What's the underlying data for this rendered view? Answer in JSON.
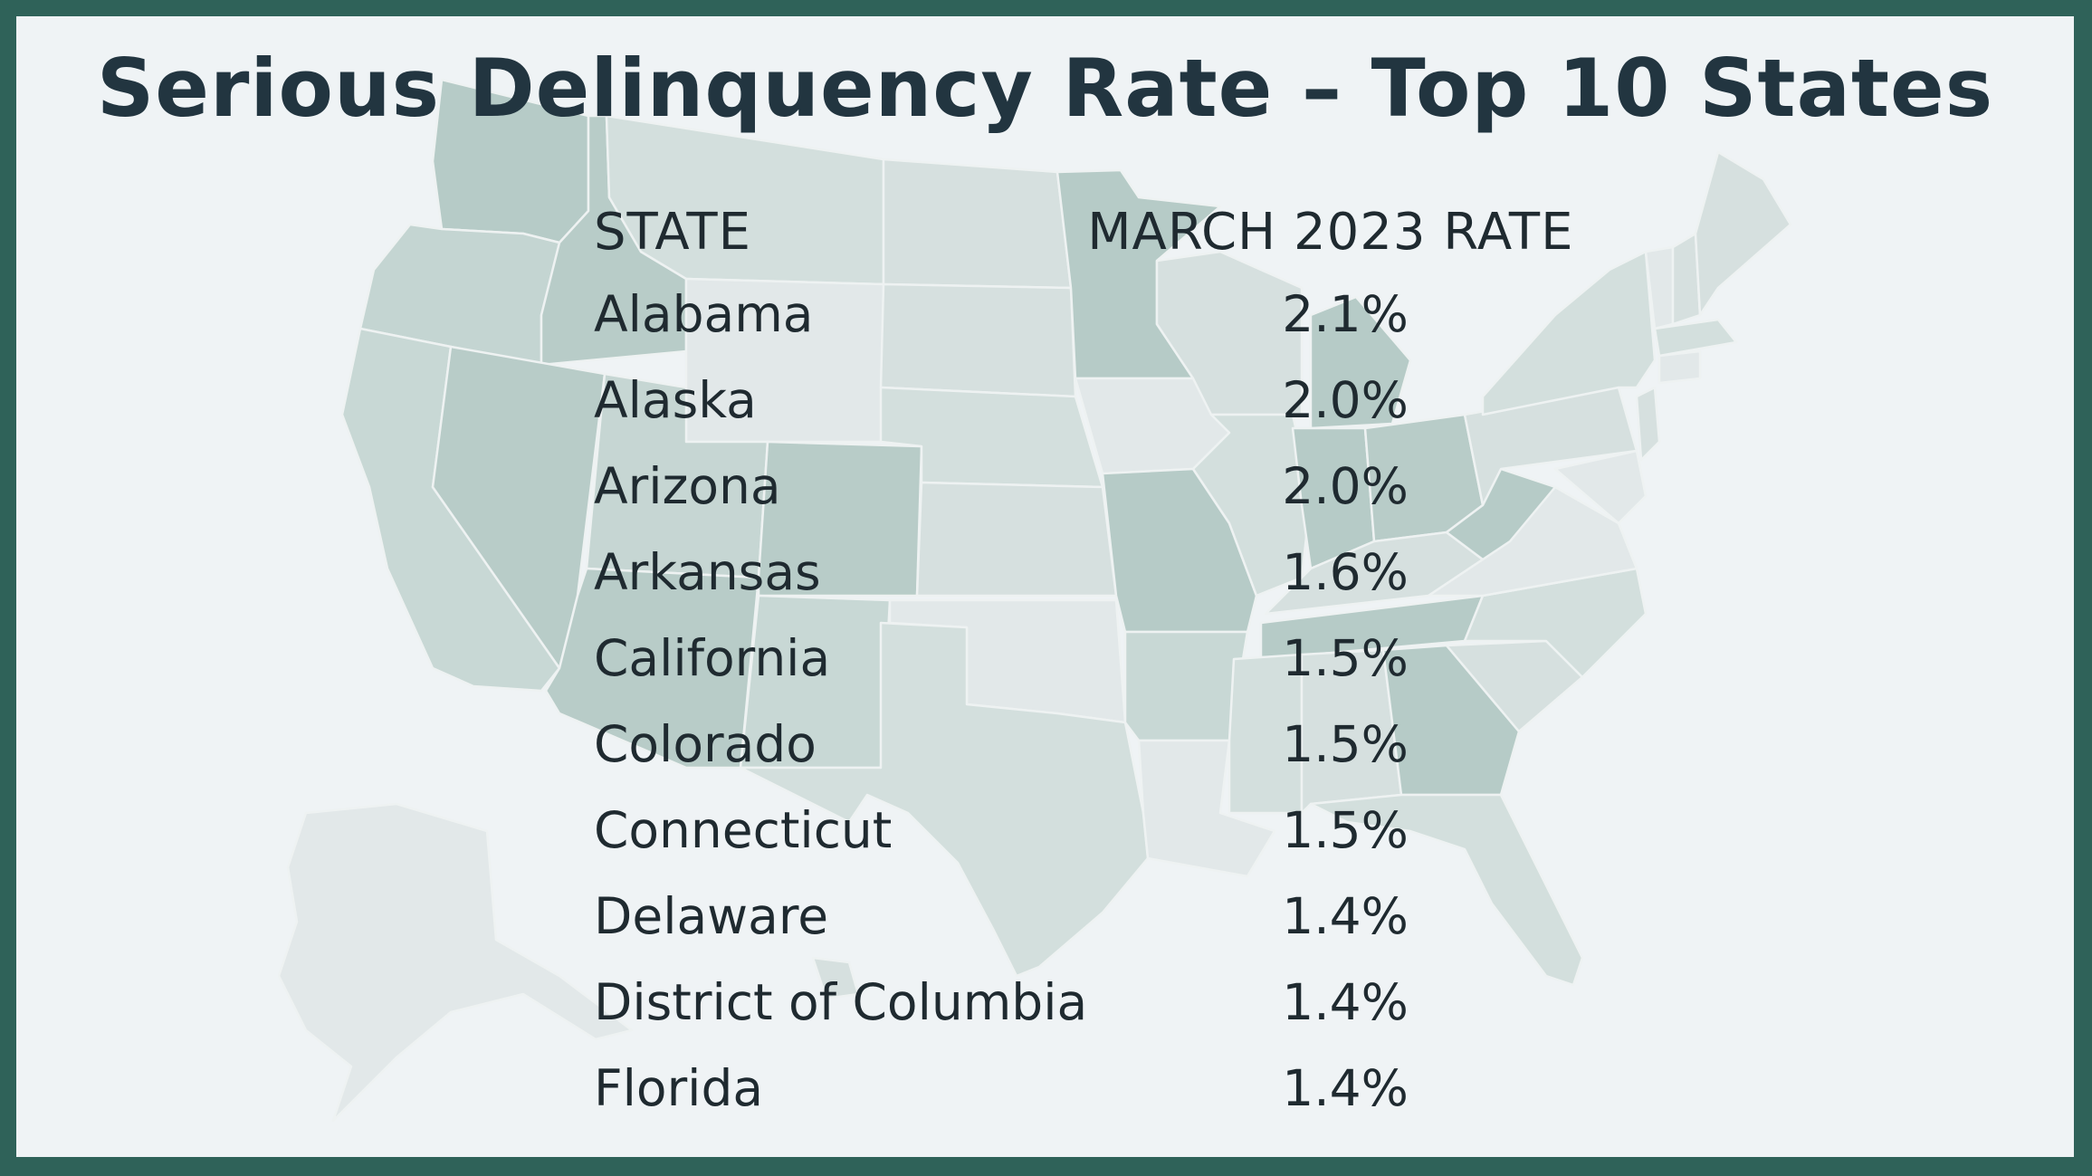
{
  "title": "Serious Delinquency Rate – Top 10 States",
  "table": {
    "headers": {
      "state": "STATE",
      "rate": "MARCH 2023 RATE"
    },
    "rows": [
      {
        "state": "Alabama",
        "rate": "2.1%"
      },
      {
        "state": "Alaska",
        "rate": "2.0%"
      },
      {
        "state": "Arizona",
        "rate": "2.0%"
      },
      {
        "state": "Arkansas",
        "rate": "1.6%"
      },
      {
        "state": "California",
        "rate": "1.5%"
      },
      {
        "state": "Colorado",
        "rate": "1.5%"
      },
      {
        "state": "Connecticut",
        "rate": "1.5%"
      },
      {
        "state": "Delaware",
        "rate": "1.4%"
      },
      {
        "state": "District of Columbia",
        "rate": "1.4%"
      },
      {
        "state": "Florida",
        "rate": "1.4%"
      }
    ]
  },
  "colors": {
    "frame": "#2f6259",
    "background": "#eff3f5",
    "title_text": "#223540",
    "body_text": "#1f2a30",
    "map_dark": "#b3c8c4",
    "map_mid": "#c6d6d3",
    "map_light": "#d8e2e1",
    "map_pale": "#e3e9ea"
  }
}
